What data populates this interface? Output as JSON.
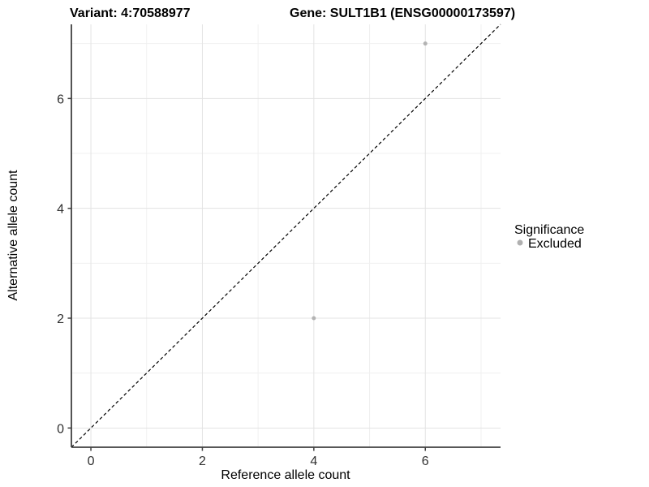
{
  "titles": {
    "variant": "Variant: 4:70588977",
    "gene": "Gene: SULT1B1 (ENSG00000173597)"
  },
  "chart_data": {
    "type": "scatter",
    "xlabel": "Reference allele count",
    "ylabel": "Alternative allele count",
    "xlim": [
      -0.35,
      7.35
    ],
    "ylim": [
      -0.35,
      7.35
    ],
    "x_major_ticks": [
      0,
      2,
      4,
      6
    ],
    "y_major_ticks": [
      0,
      2,
      4,
      6
    ],
    "x_minor_ticks": [
      1,
      3,
      5,
      7
    ],
    "y_minor_ticks": [
      1,
      3,
      5,
      7
    ],
    "grid": true,
    "identity_line": {
      "style": "dashed",
      "x1": -0.35,
      "y1": -0.35,
      "x2": 7.35,
      "y2": 7.35,
      "color": "#000000"
    },
    "series": [
      {
        "name": "Excluded",
        "color": "#b3b3b3",
        "points": [
          {
            "x": 4,
            "y": 2
          },
          {
            "x": 6,
            "y": 7
          }
        ]
      }
    ],
    "legend": {
      "title": "Significance",
      "position": "right",
      "items": [
        {
          "label": "Excluded",
          "color": "#b0b0b0"
        }
      ]
    }
  },
  "colors": {
    "background": "#ffffff",
    "grid_major": "#e3e3e3",
    "grid_minor": "#f0f0f0",
    "axis_line": "#404040",
    "tick_mark": "#404040",
    "tick_label": "#303030",
    "point": "#b3b3b3"
  }
}
